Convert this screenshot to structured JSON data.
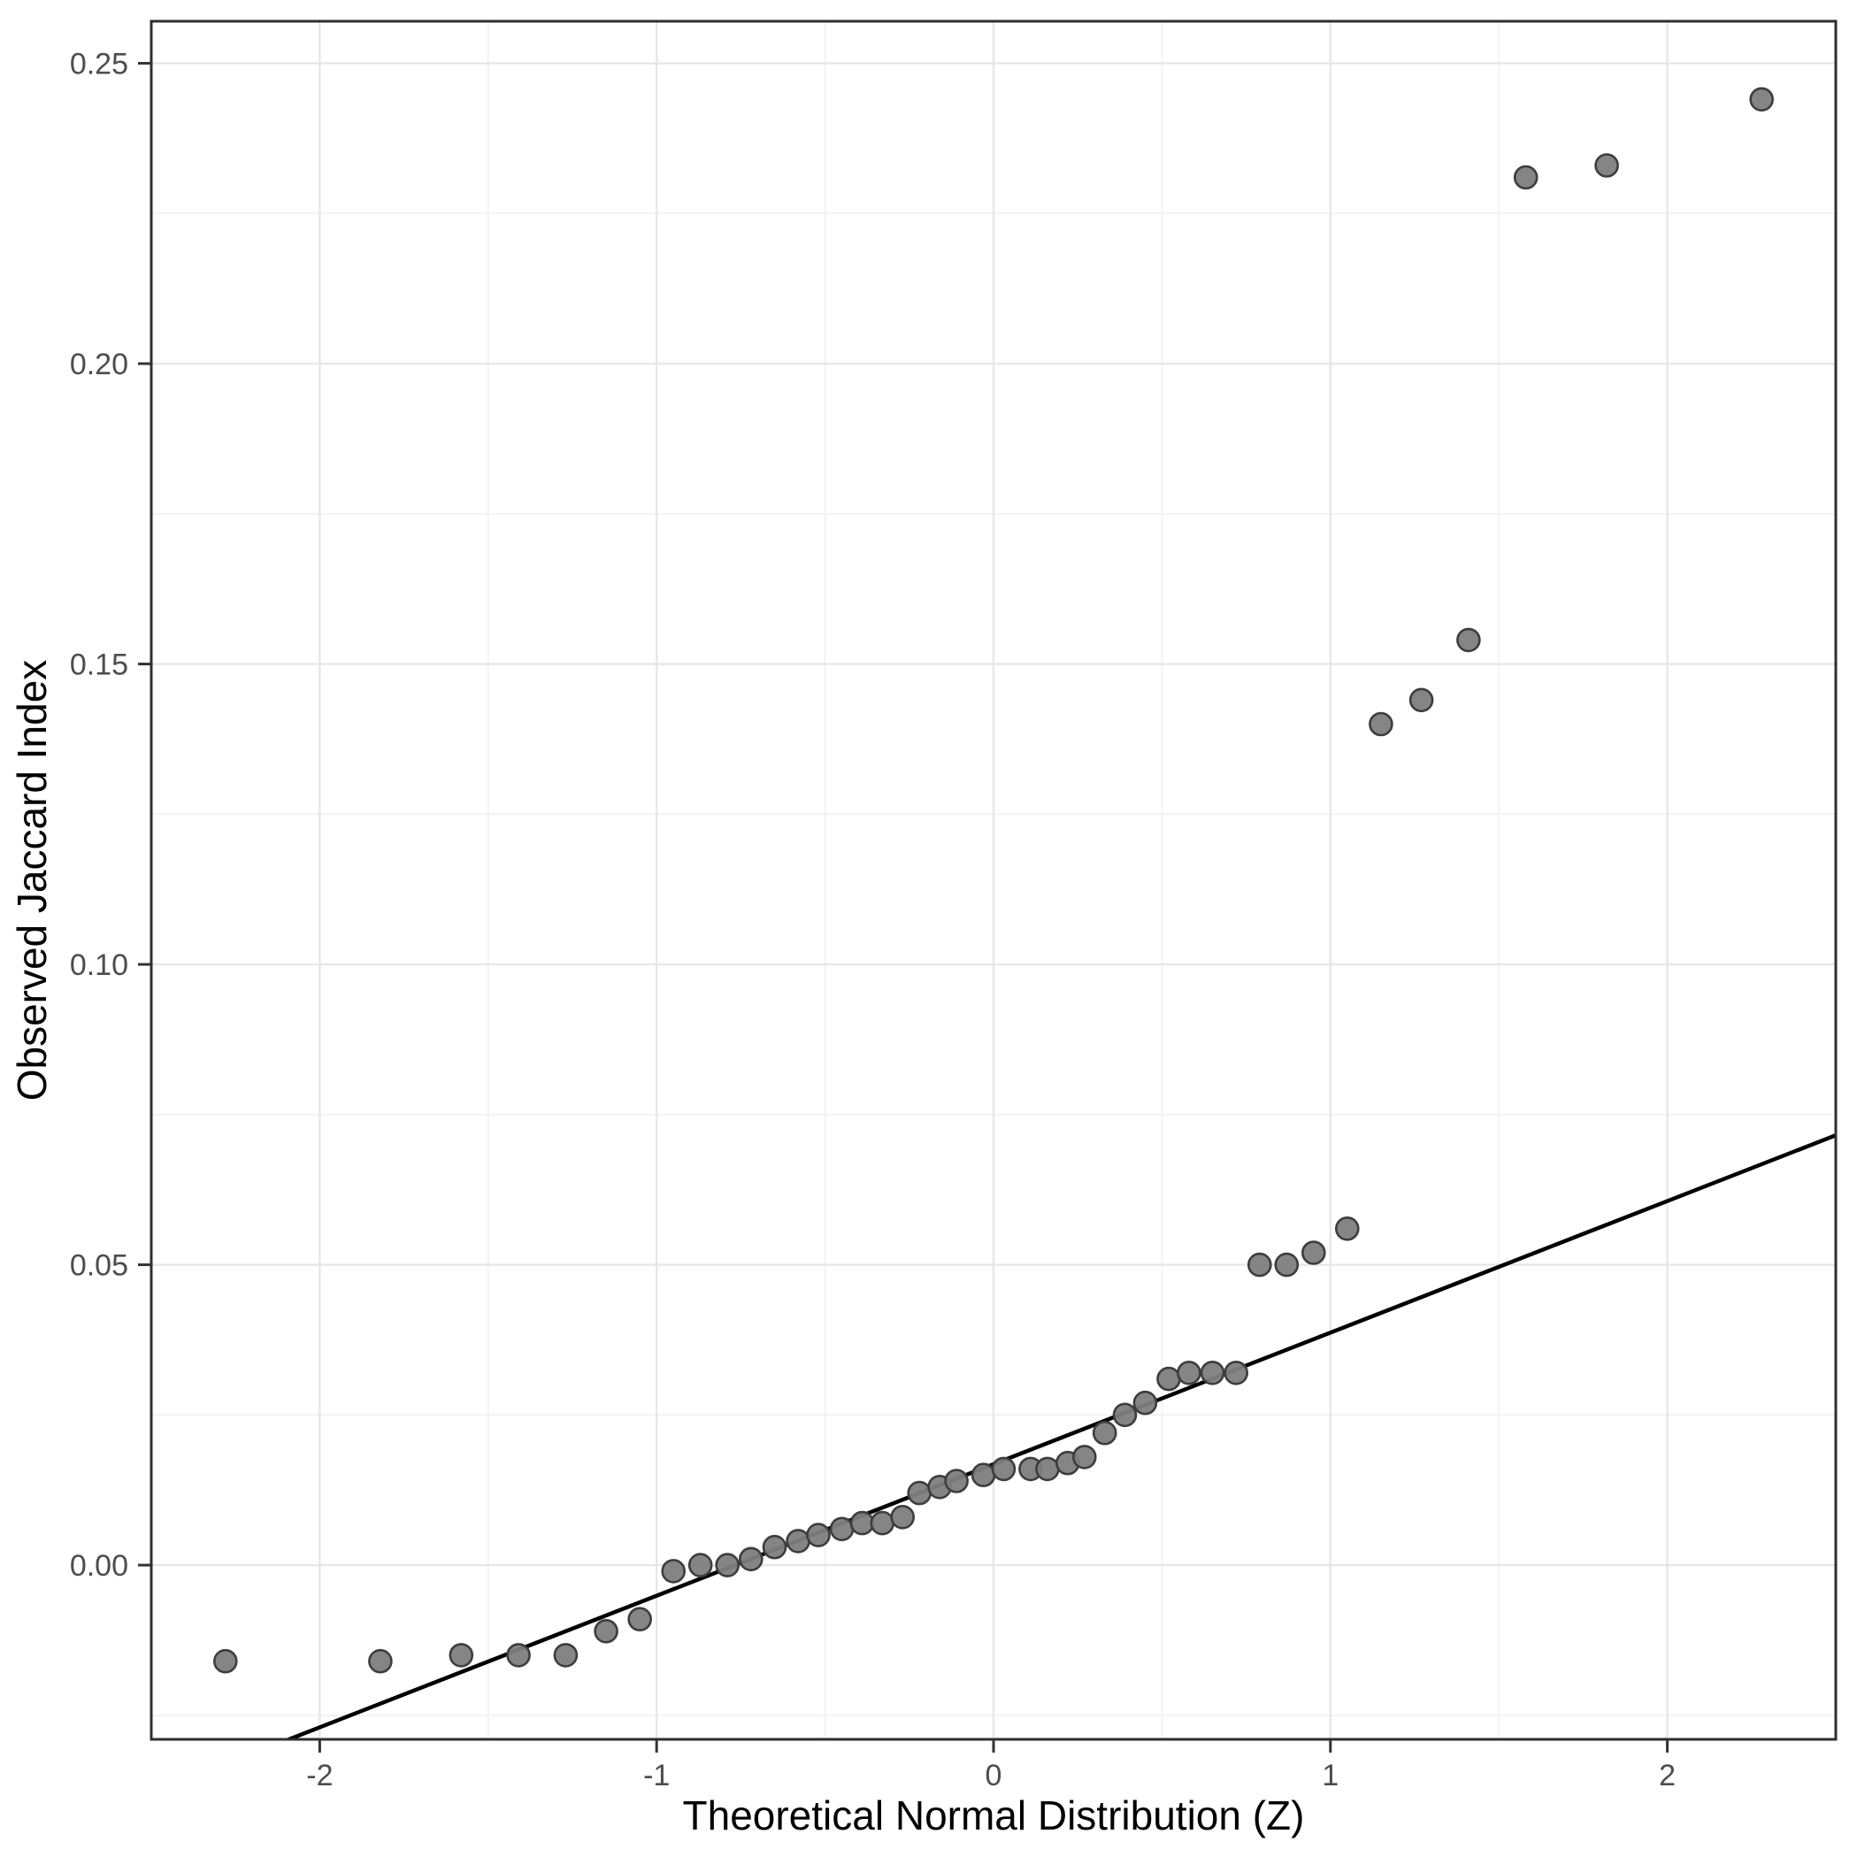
{
  "chart_data": {
    "type": "scatter",
    "title": "",
    "xlabel": "Theoretical Normal Distribution (Z)",
    "ylabel": "Observed Jaccard Index",
    "x_tick_labels": [
      "-2",
      "-1",
      "0",
      "1",
      "2"
    ],
    "x_tick_values": [
      -2,
      -1,
      0,
      1,
      2
    ],
    "y_tick_labels": [
      "0.00",
      "0.05",
      "0.10",
      "0.15",
      "0.20",
      "0.25"
    ],
    "y_tick_values": [
      0.0,
      0.05,
      0.1,
      0.15,
      0.2,
      0.25
    ],
    "x_minor_values": [
      -1.5,
      -0.5,
      0.5,
      1.5
    ],
    "y_minor_values": [
      -0.025,
      0.025,
      0.075,
      0.125,
      0.175,
      0.225
    ],
    "xlim": [
      -2.5,
      2.5
    ],
    "ylim": [
      -0.029,
      0.257
    ],
    "grid": {
      "major_on": true,
      "minor_on": true
    },
    "legend_position": "none",
    "points": [
      [
        -2.28,
        -0.016
      ],
      [
        -1.82,
        -0.016
      ],
      [
        -1.58,
        -0.015
      ],
      [
        -1.41,
        -0.015
      ],
      [
        -1.27,
        -0.015
      ],
      [
        -1.15,
        -0.011
      ],
      [
        -1.05,
        -0.009
      ],
      [
        -0.95,
        -0.001
      ],
      [
        -0.87,
        0.0
      ],
      [
        -0.79,
        0.0
      ],
      [
        -0.72,
        0.001
      ],
      [
        -0.65,
        0.003
      ],
      [
        -0.58,
        0.004
      ],
      [
        -0.52,
        0.005
      ],
      [
        -0.45,
        0.006
      ],
      [
        -0.39,
        0.007
      ],
      [
        -0.33,
        0.007
      ],
      [
        -0.27,
        0.008
      ],
      [
        -0.22,
        0.012
      ],
      [
        -0.16,
        0.013
      ],
      [
        -0.11,
        0.014
      ],
      [
        -0.03,
        0.015
      ],
      [
        0.03,
        0.016
      ],
      [
        0.11,
        0.016
      ],
      [
        0.16,
        0.016
      ],
      [
        0.22,
        0.017
      ],
      [
        0.27,
        0.018
      ],
      [
        0.33,
        0.022
      ],
      [
        0.39,
        0.025
      ],
      [
        0.45,
        0.027
      ],
      [
        0.52,
        0.031
      ],
      [
        0.58,
        0.032
      ],
      [
        0.65,
        0.032
      ],
      [
        0.72,
        0.032
      ],
      [
        0.79,
        0.05
      ],
      [
        0.87,
        0.05
      ],
      [
        0.95,
        0.052
      ],
      [
        1.05,
        0.056
      ],
      [
        1.15,
        0.14
      ],
      [
        1.27,
        0.144
      ],
      [
        1.41,
        0.154
      ],
      [
        1.58,
        0.231
      ],
      [
        1.82,
        0.233
      ],
      [
        2.28,
        0.244
      ]
    ],
    "ref_line": {
      "intercept": 0.0168,
      "slope": 0.0219
    },
    "colors": {
      "background": "#ffffff",
      "panel_background": "#ffffff",
      "panel_border": "#2e2e2e",
      "grid_major": "#e7e7e7",
      "grid_minor": "#f2f2f2",
      "point_fill": "#7e7e7e",
      "point_stroke": "#3d3d3d",
      "ref_line_color": "#000000",
      "tick_color": "#333333",
      "tick_label_color": "#4d4d4d",
      "axis_title_color": "#000000"
    }
  }
}
